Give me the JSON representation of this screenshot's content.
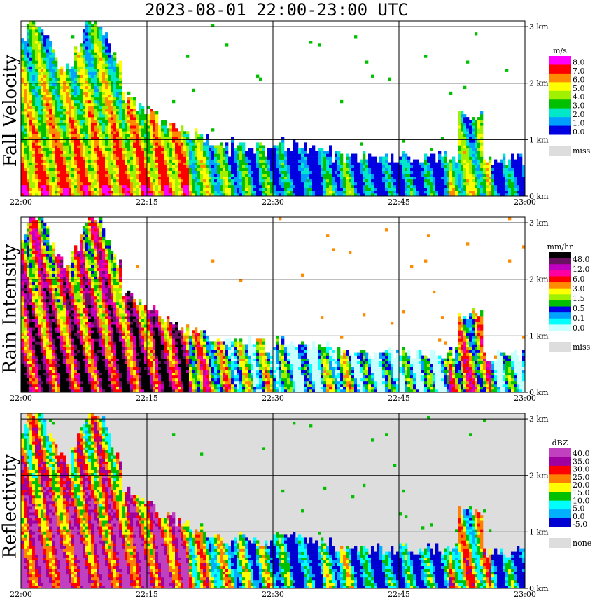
{
  "title": "2023-08-01   22:00-23:00 UTC",
  "chart_data": [
    {
      "type": "heatmap",
      "panel_title": "Fall Velocity",
      "x_ticks": [
        "22:00",
        "22:15",
        "22:30",
        "22:45",
        "23:00"
      ],
      "y_ticks": [
        "0 km",
        "1 km",
        "2 km",
        "3 km"
      ],
      "xlim_minutes": [
        0,
        60
      ],
      "ylim_km": [
        0,
        3.1
      ],
      "grid": true,
      "colorbar": {
        "unit": "m/s",
        "labels": [
          "8.0",
          "7.0",
          "6.0",
          "5.0",
          "4.0",
          "3.0",
          "2.0",
          "1.0",
          "0.0"
        ],
        "colors": [
          "#ff00ff",
          "#ff0000",
          "#ff8c00",
          "#ffff00",
          "#a0f000",
          "#00c000",
          "#00e8c8",
          "#00a0ff",
          "#0000e0"
        ],
        "miss_label": "miss",
        "miss_color": "#dddddd"
      },
      "background": "#ffffff",
      "field": "velocity"
    },
    {
      "type": "heatmap",
      "panel_title": "Rain Intensity",
      "x_ticks": [
        "22:00",
        "22:15",
        "22:30",
        "22:45",
        "23:00"
      ],
      "y_ticks": [
        "0 km",
        "1 km",
        "2 km",
        "3 km"
      ],
      "xlim_minutes": [
        0,
        60
      ],
      "ylim_km": [
        0,
        3.1
      ],
      "grid": true,
      "colorbar": {
        "unit": "mm/hr",
        "labels": [
          "48.0",
          "12.0",
          "6.0",
          "3.0",
          "1.5",
          "0.5",
          "0.1",
          "0.0"
        ],
        "colors": [
          "#000000",
          "#6a1060",
          "#c000c0",
          "#ff00a0",
          "#ff0000",
          "#ff8c00",
          "#ffff00",
          "#a0f000",
          "#00c000",
          "#0000e0",
          "#00a0ff",
          "#00ffff",
          "#c8ffff"
        ],
        "miss_label": "miss",
        "miss_color": "#dddddd"
      },
      "background": "#ffffff",
      "field": "rain"
    },
    {
      "type": "heatmap",
      "panel_title": "Reflectivity",
      "x_ticks": [
        "22:00",
        "22:15",
        "22:30",
        "22:45",
        "23:00"
      ],
      "y_ticks": [
        "0 km",
        "1 km",
        "2 km",
        "3 km"
      ],
      "xlim_minutes": [
        0,
        60
      ],
      "ylim_km": [
        0,
        3.1
      ],
      "grid": true,
      "colorbar": {
        "unit": "dBZ",
        "labels": [
          "40.0",
          "35.0",
          "30.0",
          "25.0",
          "20.0",
          "15.0",
          "10.0",
          "5.0",
          "0.0",
          "-5.0"
        ],
        "colors": [
          "#c040c0",
          "#a000a0",
          "#ff0000",
          "#ff8000",
          "#ffff00",
          "#00c000",
          "#00ffff",
          "#00b0ff",
          "#0000d0"
        ],
        "miss_label": "none",
        "miss_color": "#dddddd"
      },
      "background": "#dddddd",
      "field": "refl"
    }
  ]
}
